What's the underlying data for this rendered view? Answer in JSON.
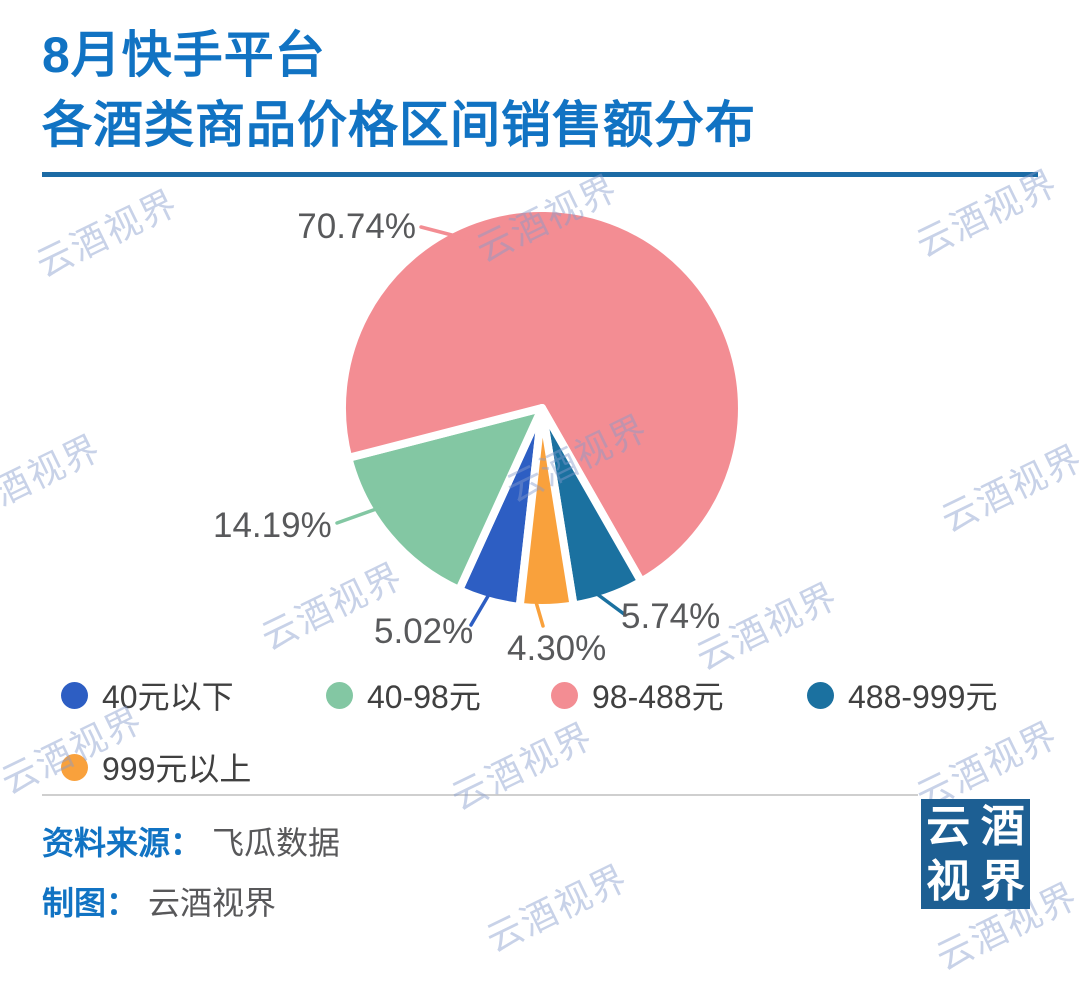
{
  "title": {
    "line1": "8月快手平台",
    "line2": "各酒类商品价格区间销售额分布"
  },
  "chart_data": {
    "type": "pie",
    "title": "8月快手平台各酒类商品价格区间销售额分布",
    "unit": "percent",
    "start_angle_deg_cw_from_top": 186.4,
    "clockwise": true,
    "legend_position": "bottom",
    "slices": [
      {
        "label": "40元以下",
        "value": 5.02,
        "pct_label": "5.02%",
        "color": "#2d5ec3"
      },
      {
        "label": "40-98元",
        "value": 14.19,
        "pct_label": "14.19%",
        "color": "#83c7a3"
      },
      {
        "label": "98-488元",
        "value": 70.74,
        "pct_label": "70.74%",
        "color": "#f38d93"
      },
      {
        "label": "488-999元",
        "value": 5.74,
        "pct_label": "5.74%",
        "color": "#1b71a0"
      },
      {
        "label": "999元以上",
        "value": 4.3,
        "pct_label": "4.30%",
        "color": "#f9a13c"
      }
    ]
  },
  "footer": {
    "source_label": "资料来源：",
    "source_value": "飞瓜数据",
    "author_label": "制图：",
    "author_value": "云酒视界",
    "logo_chars": [
      "云",
      "酒",
      "视",
      "界"
    ]
  },
  "watermark": {
    "text": "云酒视界"
  },
  "colors": {
    "title_blue": "#1173c3",
    "title_rule_blue": "#1c6ba5",
    "label_gray": "#58595b",
    "footer_rule_gray": "#cfcfcf",
    "logo_bg_blue": "#1d5f93"
  }
}
